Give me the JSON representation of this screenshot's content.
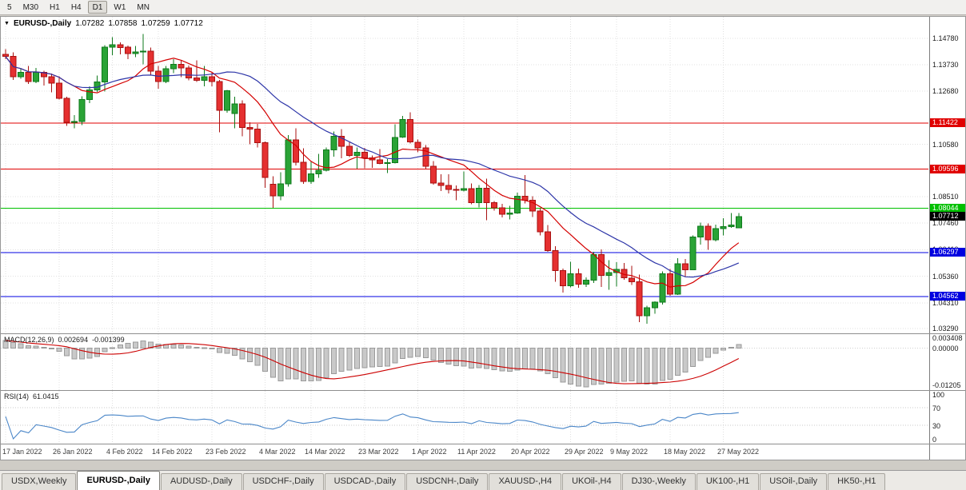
{
  "toolbar": {
    "timeframes": [
      {
        "label": "5",
        "active": false
      },
      {
        "label": "M30",
        "active": false
      },
      {
        "label": "H1",
        "active": false
      },
      {
        "label": "H4",
        "active": false
      },
      {
        "label": "D1",
        "active": true
      },
      {
        "label": "W1",
        "active": false
      },
      {
        "label": "MN",
        "active": false
      }
    ]
  },
  "chart": {
    "header": {
      "symbol": "EURUSD-,Daily",
      "open": "1.07282",
      "high": "1.07858",
      "low": "1.07259",
      "close": "1.07712"
    },
    "current_price": {
      "label": "1.07712",
      "value": 1.07712,
      "bg": "#000000",
      "fg": "#ffffff"
    }
  },
  "chart_data": {
    "type": "candlestick",
    "title": "EURUSD-,Daily",
    "x_step": 9.55,
    "x_offset": 6,
    "candle_width": 7,
    "price_range": [
      1.031,
      1.1563
    ],
    "colors": {
      "up_fill": "#2aa336",
      "up_border": "#0e7a1b",
      "down_fill": "#e53030",
      "down_border": "#a81111",
      "grid": "#e0e0e0"
    },
    "y_ticks": [
      {
        "label": "1.14780",
        "value": 1.1478
      },
      {
        "label": "1.13730",
        "value": 1.1373
      },
      {
        "label": "1.12680",
        "value": 1.1268
      },
      {
        "label": "1.10580",
        "value": 1.1058
      },
      {
        "label": "1.08510",
        "value": 1.0851
      },
      {
        "label": "1.07460",
        "value": 1.0746
      },
      {
        "label": "1.06410",
        "value": 1.0641
      },
      {
        "label": "1.05360",
        "value": 1.0536
      },
      {
        "label": "1.04310",
        "value": 1.0431
      },
      {
        "label": "1.03290",
        "value": 1.0329
      }
    ],
    "levels": [
      {
        "label": "1.11422",
        "value": 1.11422,
        "color": "#e00000"
      },
      {
        "label": "1.09596",
        "value": 1.09596,
        "color": "#e00000"
      },
      {
        "label": "1.08044",
        "value": 1.08044,
        "color": "#00c000"
      },
      {
        "label": "1.06297",
        "value": 1.06297,
        "color": "#0000e0"
      },
      {
        "label": "1.04562",
        "value": 1.04562,
        "color": "#0000e0"
      }
    ],
    "moving_averages": [
      {
        "period": 10,
        "color": "#d40000"
      },
      {
        "period": 20,
        "color": "#2d35a8"
      }
    ],
    "x_labels": [
      {
        "label": "17 Jan 2022",
        "index": 0
      },
      {
        "label": "26 Jan 2022",
        "index": 7
      },
      {
        "label": "4 Feb 2022",
        "index": 14
      },
      {
        "label": "14 Feb 2022",
        "index": 20
      },
      {
        "label": "23 Feb 2022",
        "index": 27
      },
      {
        "label": "4 Mar 2022",
        "index": 34
      },
      {
        "label": "14 Mar 2022",
        "index": 40
      },
      {
        "label": "23 Mar 2022",
        "index": 47
      },
      {
        "label": "1 Apr 2022",
        "index": 54
      },
      {
        "label": "11 Apr 2022",
        "index": 60
      },
      {
        "label": "20 Apr 2022",
        "index": 67
      },
      {
        "label": "29 Apr 2022",
        "index": 74
      },
      {
        "label": "9 May 2022",
        "index": 80
      },
      {
        "label": "18 May 2022",
        "index": 87
      },
      {
        "label": "27 May 2022",
        "index": 94
      }
    ],
    "ohlc": [
      [
        1.1415,
        1.1435,
        1.1395,
        1.1406
      ],
      [
        1.1406,
        1.1422,
        1.1313,
        1.1325
      ],
      [
        1.1325,
        1.1358,
        1.1317,
        1.1343
      ],
      [
        1.1343,
        1.1369,
        1.1297,
        1.1307
      ],
      [
        1.1307,
        1.136,
        1.13,
        1.1343
      ],
      [
        1.1343,
        1.1349,
        1.1291,
        1.1325
      ],
      [
        1.1325,
        1.1338,
        1.1264,
        1.1301
      ],
      [
        1.1301,
        1.1327,
        1.1235,
        1.124
      ],
      [
        1.124,
        1.1246,
        1.1131,
        1.1145
      ],
      [
        1.1145,
        1.1174,
        1.1121,
        1.1148
      ],
      [
        1.1148,
        1.1248,
        1.1135,
        1.1235
      ],
      [
        1.1235,
        1.1287,
        1.1221,
        1.1273
      ],
      [
        1.1273,
        1.1331,
        1.1266,
        1.1305
      ],
      [
        1.1305,
        1.1451,
        1.1267,
        1.1443
      ],
      [
        1.1443,
        1.1483,
        1.1411,
        1.1452
      ],
      [
        1.1452,
        1.1462,
        1.1414,
        1.1442
      ],
      [
        1.1442,
        1.1449,
        1.1396,
        1.1417
      ],
      [
        1.1417,
        1.1448,
        1.1403,
        1.1424
      ],
      [
        1.1424,
        1.1495,
        1.1375,
        1.1427
      ],
      [
        1.1427,
        1.1441,
        1.133,
        1.1348
      ],
      [
        1.1348,
        1.1369,
        1.1278,
        1.1306
      ],
      [
        1.1306,
        1.1368,
        1.1301,
        1.1358
      ],
      [
        1.1358,
        1.1395,
        1.134,
        1.1374
      ],
      [
        1.1374,
        1.1392,
        1.1324,
        1.136
      ],
      [
        1.136,
        1.137,
        1.1312,
        1.1321
      ],
      [
        1.1321,
        1.139,
        1.1305,
        1.1311
      ],
      [
        1.1311,
        1.1368,
        1.1287,
        1.1326
      ],
      [
        1.1326,
        1.1343,
        1.1287,
        1.1307
      ],
      [
        1.1307,
        1.1313,
        1.1106,
        1.1193
      ],
      [
        1.1193,
        1.1274,
        1.1184,
        1.127
      ],
      [
        1.118,
        1.1246,
        1.1121,
        1.1218
      ],
      [
        1.1218,
        1.1232,
        1.109,
        1.1125
      ],
      [
        1.1125,
        1.1145,
        1.1058,
        1.1119
      ],
      [
        1.1119,
        1.1139,
        1.1045,
        1.1065
      ],
      [
        1.1065,
        1.107,
        1.0886,
        1.0927
      ],
      [
        1.09,
        1.0931,
        1.0806,
        1.0854
      ],
      [
        1.0854,
        1.0947,
        1.0837,
        1.0902
      ],
      [
        1.0902,
        1.1095,
        1.0891,
        1.1075
      ],
      [
        1.1075,
        1.1121,
        1.0975,
        1.0987
      ],
      [
        1.0987,
        1.1043,
        1.0901,
        1.0911
      ],
      [
        1.0911,
        1.0992,
        1.0902,
        1.0941
      ],
      [
        1.0941,
        1.102,
        1.0925,
        1.0955
      ],
      [
        1.0955,
        1.1046,
        1.095,
        1.1036
      ],
      [
        1.1036,
        1.1109,
        1.1009,
        1.109
      ],
      [
        1.109,
        1.1119,
        1.1003,
        1.1051
      ],
      [
        1.1051,
        1.1069,
        1.1008,
        1.1014
      ],
      [
        1.1014,
        1.1046,
        1.0962,
        1.1027
      ],
      [
        1.1027,
        1.1044,
        1.0963,
        1.1004
      ],
      [
        1.1004,
        1.1014,
        1.0965,
        1.0997
      ],
      [
        1.0997,
        1.1039,
        1.098,
        1.0983
      ],
      [
        1.0983,
        1.0999,
        1.0944,
        1.0985
      ],
      [
        1.0985,
        1.1137,
        1.0982,
        1.1086
      ],
      [
        1.1086,
        1.1171,
        1.1084,
        1.1157
      ],
      [
        1.1157,
        1.1185,
        1.1061,
        1.1067
      ],
      [
        1.1067,
        1.1077,
        1.1027,
        1.1044
      ],
      [
        1.1044,
        1.1055,
        1.096,
        1.0972
      ],
      [
        1.0972,
        1.0992,
        1.0899,
        1.0905
      ],
      [
        1.0905,
        1.0939,
        1.0874,
        1.0895
      ],
      [
        1.0895,
        1.0939,
        1.0864,
        1.0879
      ],
      [
        1.0879,
        1.0895,
        1.0837,
        1.0876
      ],
      [
        1.0876,
        1.095,
        1.0872,
        1.0883
      ],
      [
        1.0883,
        1.0904,
        1.0821,
        1.0827
      ],
      [
        1.0827,
        1.0897,
        1.0809,
        1.0885
      ],
      [
        1.0885,
        1.0923,
        1.0757,
        1.0828
      ],
      [
        1.0828,
        1.0833,
        1.0795,
        1.0807
      ],
      [
        1.0807,
        1.0822,
        1.0769,
        1.0781
      ],
      [
        1.0781,
        1.0815,
        1.0761,
        1.0786
      ],
      [
        1.0786,
        1.0867,
        1.0783,
        1.0853
      ],
      [
        1.0853,
        1.0937,
        1.0824,
        1.0837
      ],
      [
        1.0837,
        1.0852,
        1.077,
        1.0794
      ],
      [
        1.0794,
        1.0804,
        1.0697,
        1.0712
      ],
      [
        1.0712,
        1.0738,
        1.0633,
        1.0637
      ],
      [
        1.0637,
        1.0655,
        1.0514,
        1.0558
      ],
      [
        1.0558,
        1.0567,
        1.0471,
        1.0498
      ],
      [
        1.0498,
        1.0593,
        1.0492,
        1.0545
      ],
      [
        1.0545,
        1.0567,
        1.049,
        1.0504
      ],
      [
        1.0504,
        1.0532,
        1.0493,
        1.052
      ],
      [
        1.052,
        1.0632,
        1.0509,
        1.0622
      ],
      [
        1.0622,
        1.0642,
        1.0493,
        1.054
      ],
      [
        1.054,
        1.0599,
        1.0483,
        1.0551
      ],
      [
        1.0551,
        1.0591,
        1.0495,
        1.0563
      ],
      [
        1.0563,
        1.0589,
        1.0522,
        1.0529
      ],
      [
        1.0529,
        1.0578,
        1.0501,
        1.0514
      ],
      [
        1.0514,
        1.0543,
        1.0354,
        1.0379
      ],
      [
        1.0379,
        1.0419,
        1.0348,
        1.0411
      ],
      [
        1.0411,
        1.0437,
        1.0388,
        1.0434
      ],
      [
        1.0434,
        1.0556,
        1.0424,
        1.0546
      ],
      [
        1.0546,
        1.0564,
        1.0459,
        1.0465
      ],
      [
        1.0465,
        1.0607,
        1.0462,
        1.0586
      ],
      [
        1.0586,
        1.0605,
        1.0533,
        1.0562
      ],
      [
        1.0562,
        1.0697,
        1.0561,
        1.0691
      ],
      [
        1.0691,
        1.0748,
        1.0661,
        1.0734
      ],
      [
        1.0734,
        1.0745,
        1.0641,
        1.068
      ],
      [
        1.068,
        1.074,
        1.0674,
        1.0724
      ],
      [
        1.0724,
        1.0765,
        1.0697,
        1.0733
      ],
      [
        1.0733,
        1.0786,
        1.0727,
        1.0739
      ],
      [
        1.07282,
        1.07858,
        1.07259,
        1.07712
      ]
    ]
  },
  "macd": {
    "name_label": "MACD(12,26,9)",
    "main_value": "0.002694",
    "signal_value": "-0.001399",
    "fast": 12,
    "slow": 26,
    "signal": 9,
    "range": [
      -0.0135,
      0.0045
    ],
    "ticks": [
      {
        "label": "0.003408",
        "value": 0.003408
      },
      {
        "label": "0.00000",
        "value": 0
      },
      {
        "label": "-0.01205",
        "value": -0.01205
      }
    ],
    "histogram_fill": "#c9c9c9",
    "histogram_border": "#9a9a9a",
    "signal_color": "#cc0000"
  },
  "rsi": {
    "name_label": "RSI(14)",
    "value_label": "61.0415",
    "period": 14,
    "ticks": [
      {
        "label": "100",
        "value": 100
      },
      {
        "label": "70",
        "value": 70
      },
      {
        "label": "30",
        "value": 30
      },
      {
        "label": "0",
        "value": 0
      }
    ],
    "guide_levels": [
      70,
      30
    ],
    "line_color": "#4a86c8"
  },
  "tabs": [
    {
      "label": "USDX,Weekly",
      "active": false
    },
    {
      "label": "EURUSD-,Daily",
      "active": true
    },
    {
      "label": "AUDUSD-,Daily",
      "active": false
    },
    {
      "label": "USDCHF-,Daily",
      "active": false
    },
    {
      "label": "USDCAD-,Daily",
      "active": false
    },
    {
      "label": "USDCNH-,Daily",
      "active": false
    },
    {
      "label": "XAUUSD-,H4",
      "active": false
    },
    {
      "label": "UKOil-,H4",
      "active": false
    },
    {
      "label": "DJ30-,Weekly",
      "active": false
    },
    {
      "label": "UK100-,H1",
      "active": false
    },
    {
      "label": "USOil-,Daily",
      "active": false
    },
    {
      "label": "HK50-,H1",
      "active": false
    }
  ]
}
